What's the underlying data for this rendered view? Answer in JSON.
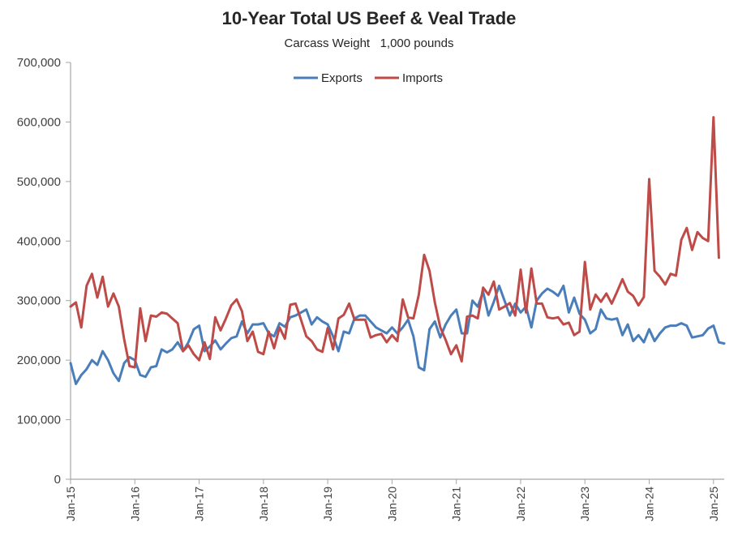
{
  "chart_data": {
    "type": "line",
    "title": "10-Year Total US Beef & Veal Trade",
    "subtitle": "Carcass Weight   1,000 pounds",
    "xlabel": "",
    "ylabel": "",
    "ylim": [
      0,
      700000
    ],
    "y_ticks": [
      0,
      100000,
      200000,
      300000,
      400000,
      500000,
      600000,
      700000
    ],
    "y_tick_labels": [
      "0",
      "100,000",
      "200,000",
      "300,000",
      "400,000",
      "500,000",
      "600,000",
      "700,000"
    ],
    "x_tick_labels": [
      "Jan-15",
      "Jan-16",
      "Jan-17",
      "Jan-18",
      "Jan-19",
      "Jan-20",
      "Jan-21",
      "Jan-22",
      "Jan-23",
      "Jan-24",
      "Jan-25"
    ],
    "legend": {
      "placement": "top-center"
    },
    "grid": false,
    "colors": {
      "exports": "#4a7ebb",
      "imports": "#be4b48",
      "axis": "#a6a6a6"
    },
    "series": [
      {
        "name": "Exports",
        "values": [
          195000,
          160000,
          175000,
          185000,
          200000,
          192000,
          215000,
          200000,
          178000,
          165000,
          195000,
          205000,
          200000,
          175000,
          172000,
          188000,
          190000,
          218000,
          213000,
          218000,
          230000,
          215000,
          230000,
          252000,
          258000,
          215000,
          223000,
          233000,
          218000,
          228000,
          237000,
          240000,
          265000,
          245000,
          260000,
          260000,
          262000,
          245000,
          240000,
          262000,
          256000,
          272000,
          275000,
          280000,
          285000,
          260000,
          272000,
          265000,
          260000,
          240000,
          215000,
          248000,
          245000,
          270000,
          275000,
          275000,
          265000,
          255000,
          250000,
          245000,
          255000,
          245000,
          255000,
          268000,
          240000,
          188000,
          183000,
          252000,
          265000,
          238000,
          260000,
          275000,
          285000,
          245000,
          245000,
          300000,
          290000,
          315000,
          275000,
          298000,
          325000,
          300000,
          275000,
          295000,
          280000,
          290000,
          255000,
          300000,
          312000,
          320000,
          315000,
          308000,
          325000,
          280000,
          305000,
          278000,
          268000,
          245000,
          252000,
          285000,
          270000,
          268000,
          270000,
          242000,
          260000,
          232000,
          242000,
          230000,
          252000,
          232000,
          245000,
          255000,
          258000,
          258000,
          262000,
          258000,
          238000,
          240000,
          242000,
          253000,
          258000,
          230000,
          228000
        ],
        "color": "#4a7ebb"
      },
      {
        "name": "Imports",
        "values": [
          290000,
          297000,
          255000,
          325000,
          345000,
          305000,
          340000,
          290000,
          312000,
          290000,
          235000,
          190000,
          188000,
          287000,
          232000,
          275000,
          273000,
          280000,
          278000,
          270000,
          262000,
          215000,
          225000,
          210000,
          200000,
          230000,
          202000,
          272000,
          250000,
          270000,
          292000,
          302000,
          282000,
          232000,
          248000,
          214000,
          210000,
          248000,
          220000,
          255000,
          236000,
          293000,
          295000,
          268000,
          240000,
          232000,
          218000,
          214000,
          254000,
          218000,
          270000,
          276000,
          295000,
          268000,
          268000,
          268000,
          238000,
          242000,
          244000,
          230000,
          242000,
          232000,
          302000,
          272000,
          270000,
          310000,
          377000,
          350000,
          297000,
          255000,
          234000,
          210000,
          225000,
          198000,
          273000,
          275000,
          270000,
          322000,
          310000,
          332000,
          285000,
          290000,
          296000,
          275000,
          352000,
          280000,
          354000,
          295000,
          295000,
          272000,
          270000,
          272000,
          260000,
          263000,
          242000,
          248000,
          365000,
          285000,
          310000,
          298000,
          312000,
          295000,
          315000,
          336000,
          315000,
          308000,
          292000,
          306000,
          504000,
          350000,
          340000,
          327000,
          345000,
          342000,
          402000,
          422000,
          385000,
          415000,
          405000,
          400000,
          608000,
          372000
        ],
        "color": "#be4b48"
      }
    ]
  }
}
